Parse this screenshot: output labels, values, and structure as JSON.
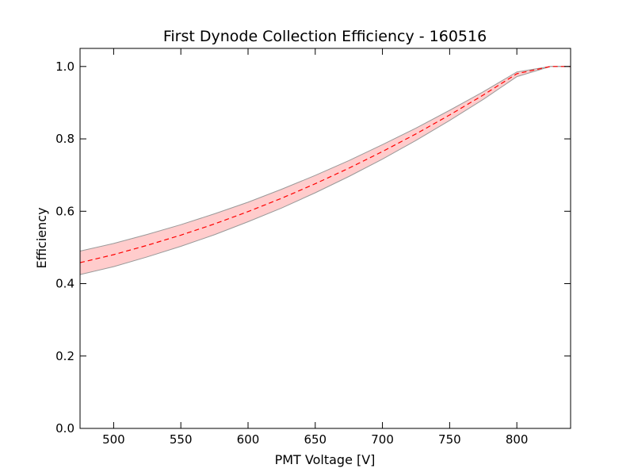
{
  "chart_data": {
    "type": "line",
    "title": "First Dynode Collection Efficiency - 160516",
    "xlabel": "PMT Voltage [V]",
    "ylabel": "Efficiency",
    "xlim": [
      475,
      840
    ],
    "ylim": [
      0.0,
      1.05
    ],
    "x_ticks": [
      500,
      550,
      600,
      650,
      700,
      750,
      800
    ],
    "y_ticks": [
      0.0,
      0.2,
      0.4,
      0.6,
      0.8,
      1.0
    ],
    "x_tick_labels": [
      "500",
      "550",
      "600",
      "650",
      "700",
      "750",
      "800"
    ],
    "y_tick_labels": [
      "0.0",
      "0.2",
      "0.4",
      "0.6",
      "0.8",
      "1.0"
    ],
    "grid": false,
    "series": [
      {
        "style": "dashed",
        "color": "#ff0000",
        "x": [
          475,
          500,
          525,
          550,
          575,
          600,
          625,
          650,
          675,
          700,
          725,
          750,
          775,
          800,
          825,
          840
        ],
        "y": [
          0.458,
          0.48,
          0.506,
          0.534,
          0.565,
          0.599,
          0.636,
          0.676,
          0.719,
          0.765,
          0.814,
          0.866,
          0.921,
          0.98,
          1.0,
          1.0
        ]
      }
    ],
    "bands": [
      {
        "fill": "#ff9999",
        "fill_opacity": 0.5,
        "edge_color": "#999999",
        "x": [
          475,
          500,
          525,
          550,
          575,
          600,
          625,
          650,
          675,
          700,
          725,
          750,
          775,
          800,
          825,
          840
        ],
        "upper": [
          0.49,
          0.511,
          0.536,
          0.563,
          0.593,
          0.625,
          0.661,
          0.699,
          0.74,
          0.784,
          0.83,
          0.879,
          0.93,
          0.985,
          1.0,
          1.0
        ],
        "lower": [
          0.425,
          0.447,
          0.474,
          0.503,
          0.535,
          0.571,
          0.609,
          0.651,
          0.696,
          0.744,
          0.796,
          0.851,
          0.909,
          0.972,
          1.0,
          1.0
        ]
      }
    ]
  }
}
